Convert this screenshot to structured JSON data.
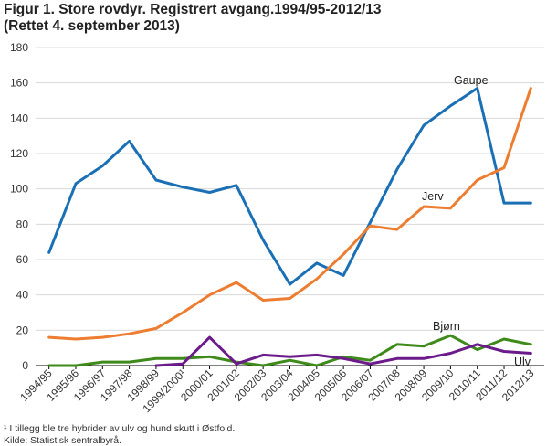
{
  "title_line1": "Figur 1.  Store rovdyr. Registrert avgang.1994/95-2012/13",
  "title_line2": "(Rettet 4. september 2013)",
  "footnote": "¹ I tillegg ble tre hybrider av ulv og hund skutt i Østfold.",
  "source": "Kilde: Statistisk sentralbyrå.",
  "chart_data": {
    "type": "line",
    "categories": [
      "1994/95",
      "1995/96",
      "1996/97",
      "1997/98",
      "1998/99",
      "1999/2000¹",
      "2000/01",
      "2001/02",
      "2002/03",
      "2003/04",
      "2004/05",
      "2005/06",
      "2006/07",
      "2007/08",
      "2008/09",
      "2009/10",
      "2010/11",
      "2011/12",
      "2012/13"
    ],
    "ylim": [
      0,
      180
    ],
    "yticks": [
      0,
      20,
      40,
      60,
      80,
      100,
      120,
      140,
      160,
      180
    ],
    "grid": true,
    "series": [
      {
        "name": "Gaupe",
        "color": "#1a6fb5",
        "values": [
          64,
          103,
          113,
          127,
          105,
          101,
          98,
          102,
          71,
          46,
          58,
          51,
          81,
          111,
          136,
          147,
          157,
          92,
          92
        ]
      },
      {
        "name": "Jerv",
        "color": "#ec7d31",
        "values": [
          16,
          15,
          16,
          18,
          21,
          30,
          40,
          47,
          37,
          38,
          49,
          63,
          79,
          77,
          90,
          89,
          105,
          112,
          157
        ]
      },
      {
        "name": "Bjørn",
        "color": "#3e8a1a",
        "values": [
          0,
          0,
          2,
          2,
          4,
          4,
          5,
          2,
          0,
          3,
          0,
          5,
          3,
          12,
          11,
          17,
          9,
          15,
          12
        ]
      },
      {
        "name": "Ulv",
        "color": "#6b1b8a",
        "values": [
          null,
          null,
          null,
          null,
          0,
          1,
          16,
          1,
          6,
          5,
          6,
          4,
          1,
          4,
          4,
          7,
          12,
          8,
          7
        ]
      }
    ]
  }
}
